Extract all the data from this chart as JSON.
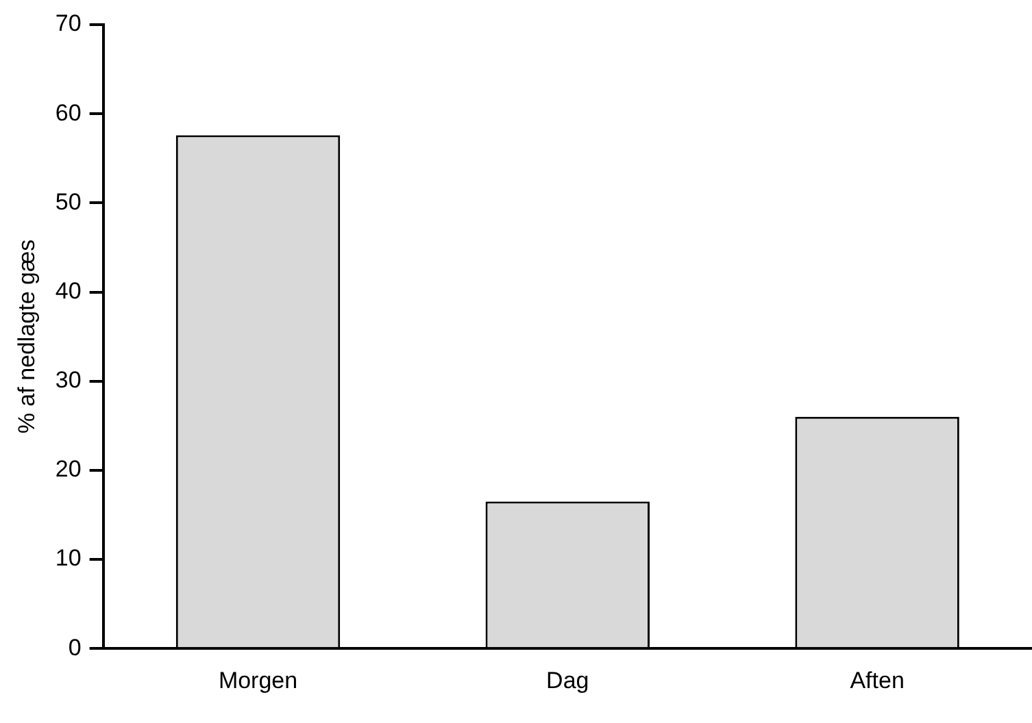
{
  "chart_data": {
    "type": "bar",
    "ylabel": "% af nedlagte gæs",
    "categories": [
      "Morgen",
      "Dag",
      "Aften"
    ],
    "values": [
      57.6,
      16.5,
      26.0
    ],
    "color": "#d9d9d9",
    "ylim": [
      0,
      70
    ],
    "yticks": [
      0,
      10,
      20,
      30,
      40,
      50,
      60,
      70
    ],
    "grid": false,
    "legend": false
  }
}
